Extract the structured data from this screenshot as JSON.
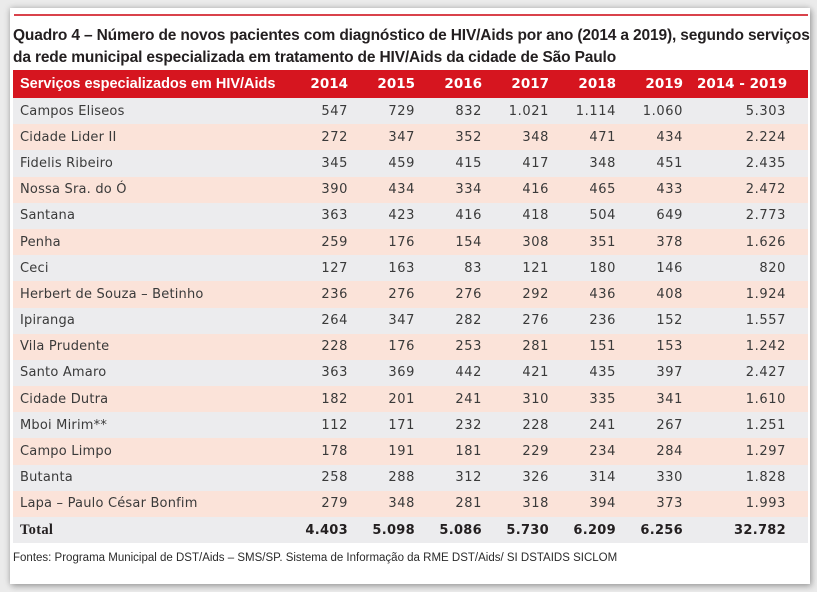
{
  "document": {
    "title": "Quadro 4 – Número de novos pacientes com diagnóstico de HIV/Aids por ano (2014 a 2019), segundo serviços da rede municipal especializada em tratamento de HIV/Aids da cidade de São Paulo",
    "accent_color": "#d6151f",
    "row_colors": [
      "#ececee",
      "#fbe3d9"
    ],
    "footer": "Fontes: Programa Municipal de DST/Aids – SMS/SP. Sistema de Informação da RME DST/Aids/ SI DSTAIDS SICLOM"
  },
  "table": {
    "headers": [
      "Serviços especializados em HIV/Aids",
      "2014",
      "2015",
      "2016",
      "2017",
      "2018",
      "2019",
      "2014 - 2019"
    ],
    "rows": [
      {
        "service": "Campos Eliseos",
        "values": [
          "547",
          "729",
          "832",
          "1.021",
          "1.114",
          "1.060",
          "5.303"
        ]
      },
      {
        "service": "Cidade Lider II",
        "values": [
          "272",
          "347",
          "352",
          "348",
          "471",
          "434",
          "2.224"
        ]
      },
      {
        "service": "Fidelis Ribeiro",
        "values": [
          "345",
          "459",
          "415",
          "417",
          "348",
          "451",
          "2.435"
        ]
      },
      {
        "service": "Nossa Sra. do Ó",
        "values": [
          "390",
          "434",
          "334",
          "416",
          "465",
          "433",
          "2.472"
        ]
      },
      {
        "service": "Santana",
        "values": [
          "363",
          "423",
          "416",
          "418",
          "504",
          "649",
          "2.773"
        ]
      },
      {
        "service": "Penha",
        "values": [
          "259",
          "176",
          "154",
          "308",
          "351",
          "378",
          "1.626"
        ]
      },
      {
        "service": "Ceci",
        "values": [
          "127",
          "163",
          "83",
          "121",
          "180",
          "146",
          "820"
        ]
      },
      {
        "service": "Herbert de Souza – Betinho",
        "values": [
          "236",
          "276",
          "276",
          "292",
          "436",
          "408",
          "1.924"
        ]
      },
      {
        "service": "Ipiranga",
        "values": [
          "264",
          "347",
          "282",
          "276",
          "236",
          "152",
          "1.557"
        ]
      },
      {
        "service": "Vila Prudente",
        "values": [
          "228",
          "176",
          "253",
          "281",
          "151",
          "153",
          "1.242"
        ]
      },
      {
        "service": "Santo Amaro",
        "values": [
          "363",
          "369",
          "442",
          "421",
          "435",
          "397",
          "2.427"
        ]
      },
      {
        "service": "Cidade Dutra",
        "values": [
          "182",
          "201",
          "241",
          "310",
          "335",
          "341",
          "1.610"
        ]
      },
      {
        "service": "Mboi Mirim**",
        "values": [
          "112",
          "171",
          "232",
          "228",
          "241",
          "267",
          "1.251"
        ]
      },
      {
        "service": "Campo Limpo",
        "values": [
          "178",
          "191",
          "181",
          "229",
          "234",
          "284",
          "1.297"
        ]
      },
      {
        "service": "Butanta",
        "values": [
          "258",
          "288",
          "312",
          "326",
          "314",
          "330",
          "1.828"
        ]
      },
      {
        "service": "Lapa – Paulo César Bonfim",
        "values": [
          "279",
          "348",
          "281",
          "318",
          "394",
          "373",
          "1.993"
        ]
      }
    ],
    "total": {
      "label": "Total",
      "values": [
        "4.403",
        "5.098",
        "5.086",
        "5.730",
        "6.209",
        "6.256",
        "32.782"
      ]
    }
  }
}
